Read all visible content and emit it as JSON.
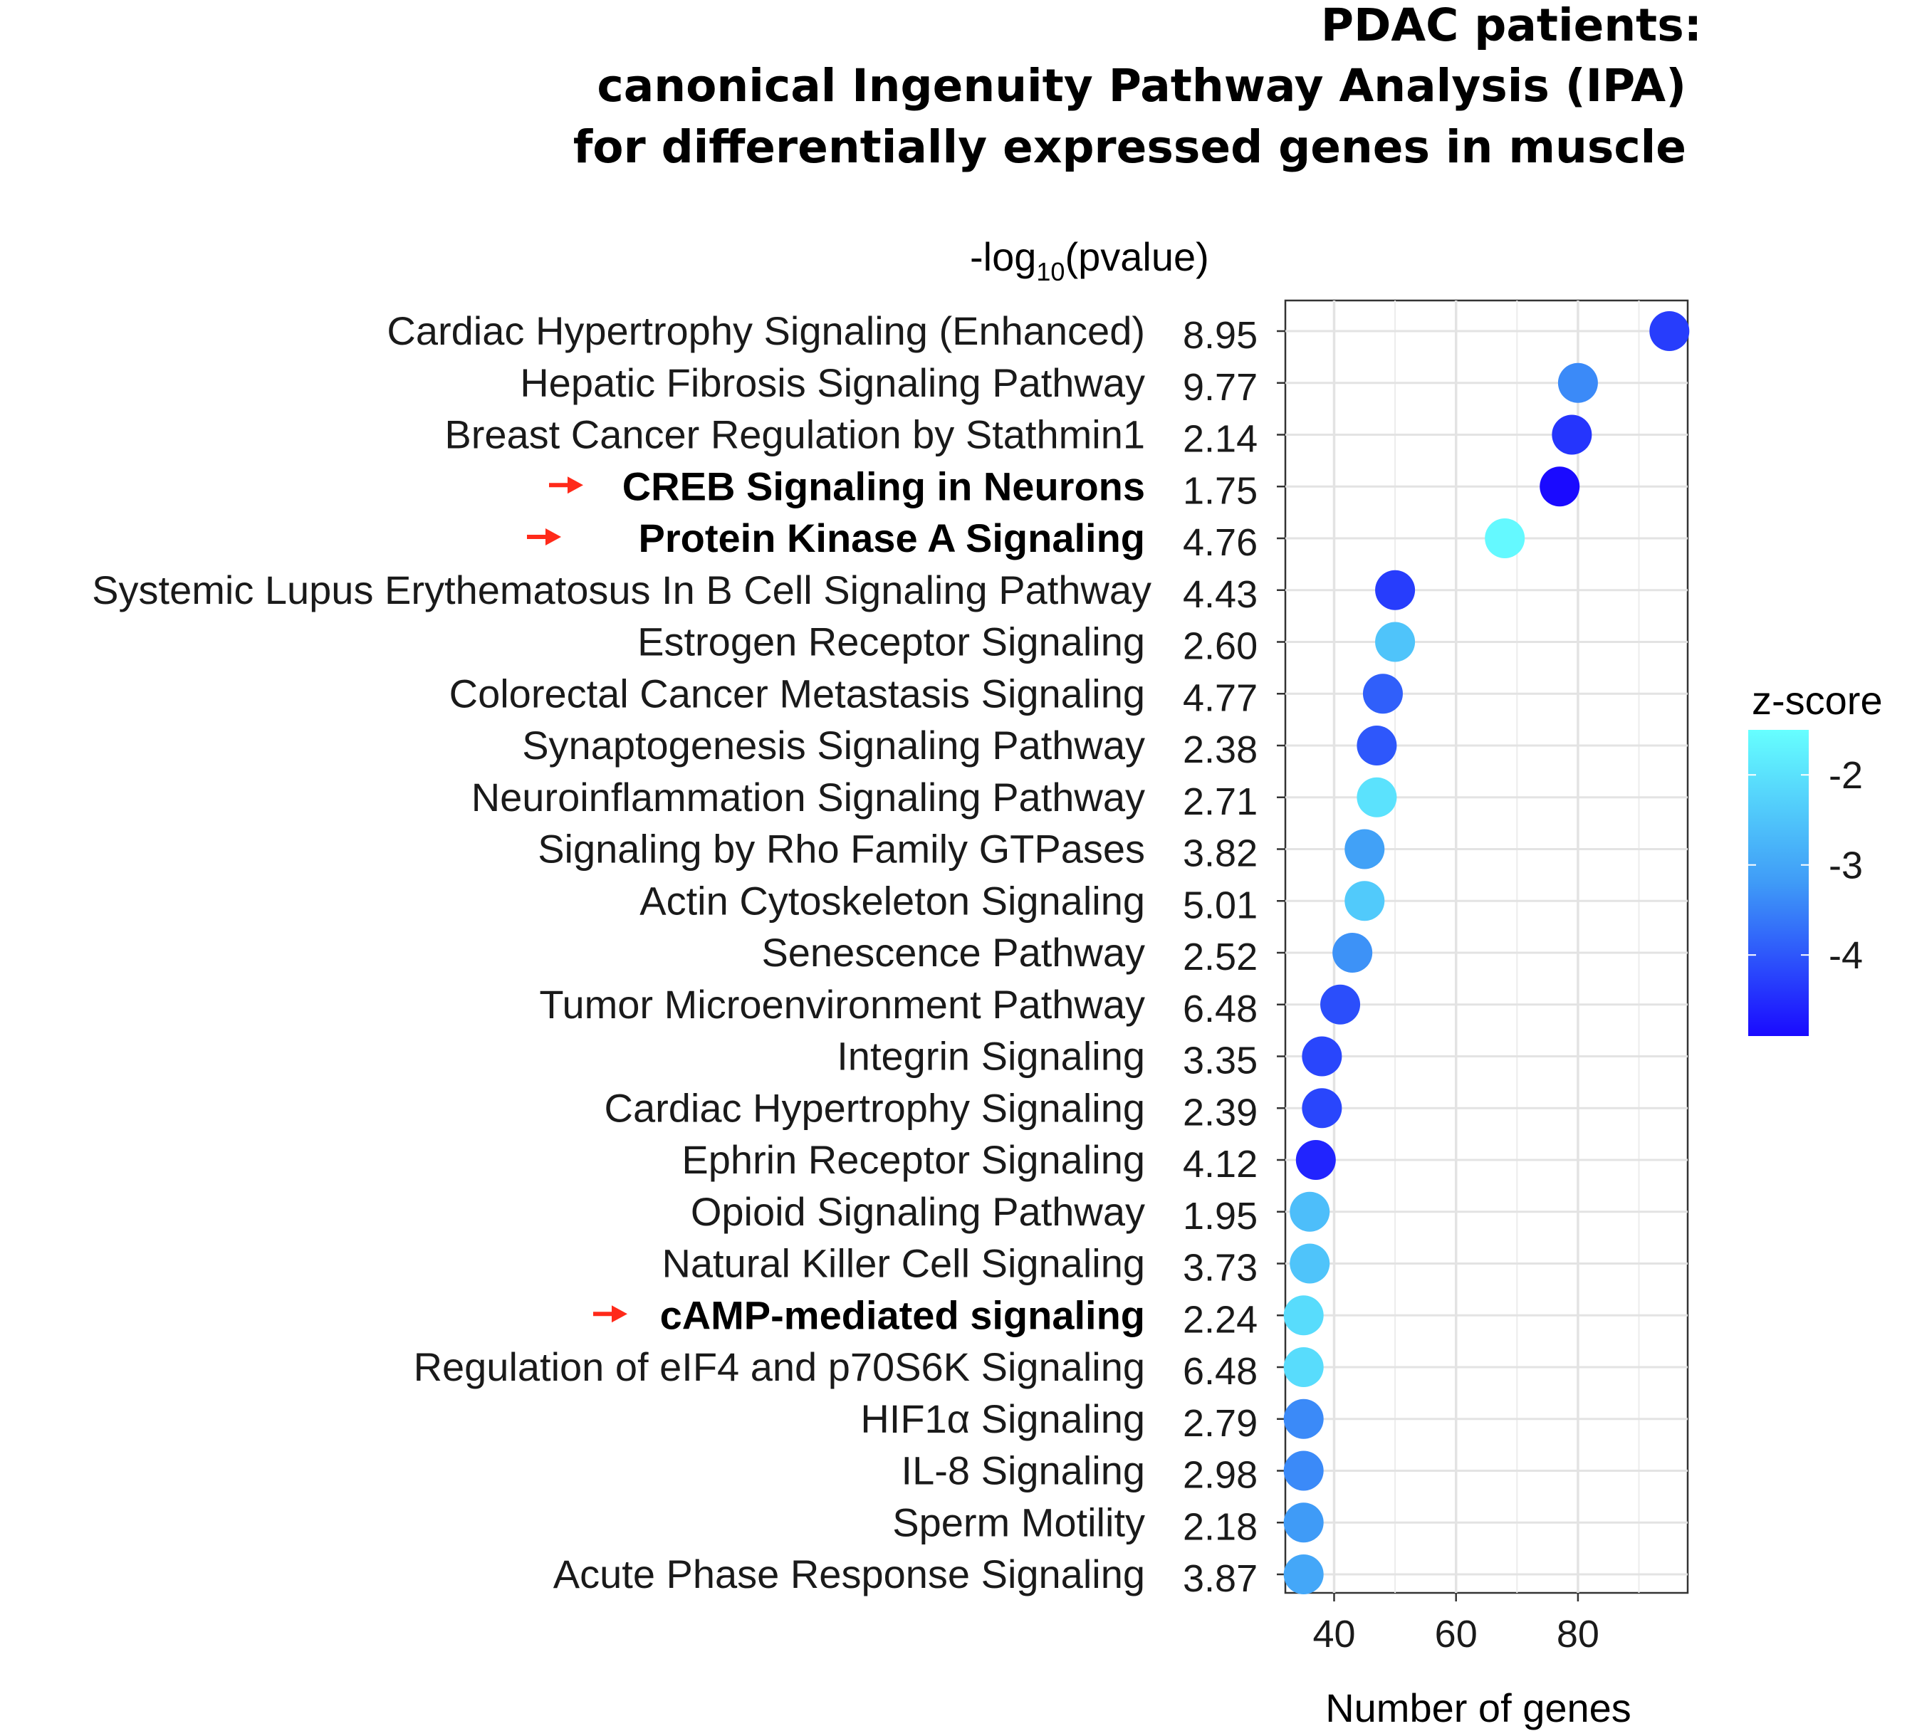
{
  "chart_data": {
    "type": "scatter",
    "title": [
      "PDAC patients:",
      "canonical Ingenuity Pathway Analysis (IPA)",
      "for differentially expressed genes in muscle"
    ],
    "pvalue_header": {
      "main": "-log",
      "sub": "10",
      "suffix": "(pvalue)"
    },
    "xlabel": "Number of genes",
    "xlim": [
      32,
      98
    ],
    "xticks": [
      40,
      60,
      80
    ],
    "legend": {
      "title": "z-score",
      "ticks": [
        -2,
        -3,
        -4
      ],
      "range": [
        -4.9,
        -1.5
      ],
      "color_low": "#1a0aff",
      "color_high": "#66ffff"
    },
    "arrow_color": "#ff2a1a",
    "series": [
      {
        "pathway": "Cardiac Hypertrophy Signaling (Enhanced)",
        "neg_log10_pvalue": "8.95",
        "genes": 95,
        "zscore": -4.3,
        "highlight": false
      },
      {
        "pathway": "Hepatic Fibrosis Signaling Pathway",
        "neg_log10_pvalue": "9.77",
        "genes": 80,
        "zscore": -3.4,
        "highlight": false
      },
      {
        "pathway": "Breast Cancer Regulation by Stathmin1",
        "neg_log10_pvalue": "2.14",
        "genes": 79,
        "zscore": -4.4,
        "highlight": false
      },
      {
        "pathway": "CREB Signaling in Neurons",
        "neg_log10_pvalue": "1.75",
        "genes": 77,
        "zscore": -4.9,
        "highlight": true
      },
      {
        "pathway": "Protein Kinase A Signaling",
        "neg_log10_pvalue": "4.76",
        "genes": 68,
        "zscore": -1.6,
        "highlight": true
      },
      {
        "pathway": "Systemic Lupus Erythematosus In B Cell Signaling Pathway",
        "neg_log10_pvalue": "4.43",
        "genes": 50,
        "zscore": -4.3,
        "highlight": false
      },
      {
        "pathway": "Estrogen Receptor Signaling",
        "neg_log10_pvalue": "2.60",
        "genes": 50,
        "zscore": -2.5,
        "highlight": false
      },
      {
        "pathway": "Colorectal Cancer Metastasis Signaling",
        "neg_log10_pvalue": "4.77",
        "genes": 48,
        "zscore": -3.9,
        "highlight": false
      },
      {
        "pathway": "Synaptogenesis Signaling Pathway",
        "neg_log10_pvalue": "2.38",
        "genes": 47,
        "zscore": -4.0,
        "highlight": false
      },
      {
        "pathway": "Neuroinflammation Signaling Pathway",
        "neg_log10_pvalue": "2.71",
        "genes": 47,
        "zscore": -2.0,
        "highlight": false
      },
      {
        "pathway": "Signaling by Rho Family GTPases",
        "neg_log10_pvalue": "3.82",
        "genes": 45,
        "zscore": -3.1,
        "highlight": false
      },
      {
        "pathway": "Actin Cytoskeleton Signaling",
        "neg_log10_pvalue": "5.01",
        "genes": 45,
        "zscore": -2.4,
        "highlight": false
      },
      {
        "pathway": "Senescence Pathway",
        "neg_log10_pvalue": "2.52",
        "genes": 43,
        "zscore": -3.3,
        "highlight": false
      },
      {
        "pathway": "Tumor Microenvironment Pathway",
        "neg_log10_pvalue": "6.48",
        "genes": 41,
        "zscore": -4.1,
        "highlight": false
      },
      {
        "pathway": "Integrin Signaling",
        "neg_log10_pvalue": "3.35",
        "genes": 38,
        "zscore": -4.2,
        "highlight": false
      },
      {
        "pathway": "Cardiac Hypertrophy Signaling",
        "neg_log10_pvalue": "2.39",
        "genes": 38,
        "zscore": -4.2,
        "highlight": false
      },
      {
        "pathway": "Ephrin Receptor Signaling",
        "neg_log10_pvalue": "4.12",
        "genes": 37,
        "zscore": -4.6,
        "highlight": false
      },
      {
        "pathway": "Opioid Signaling Pathway",
        "neg_log10_pvalue": "1.95",
        "genes": 36,
        "zscore": -2.6,
        "highlight": false
      },
      {
        "pathway": "Natural Killer Cell Signaling",
        "neg_log10_pvalue": "3.73",
        "genes": 36,
        "zscore": -2.5,
        "highlight": false
      },
      {
        "pathway": "cAMP-mediated signaling",
        "neg_log10_pvalue": "2.24",
        "genes": 35,
        "zscore": -2.1,
        "highlight": true
      },
      {
        "pathway": "Regulation of eIF4 and p70S6K Signaling",
        "neg_log10_pvalue": "6.48",
        "genes": 35,
        "zscore": -2.1,
        "highlight": false
      },
      {
        "pathway": "HIF1α Signaling",
        "neg_log10_pvalue": "2.79",
        "genes": 35,
        "zscore": -3.4,
        "highlight": false
      },
      {
        "pathway": "IL-8 Signaling",
        "neg_log10_pvalue": "2.98",
        "genes": 35,
        "zscore": -3.4,
        "highlight": false
      },
      {
        "pathway": "Sperm Motility",
        "neg_log10_pvalue": "2.18",
        "genes": 35,
        "zscore": -3.2,
        "highlight": false
      },
      {
        "pathway": "Acute Phase Response Signaling",
        "neg_log10_pvalue": "3.87",
        "genes": 35,
        "zscore": -3.0,
        "highlight": false
      }
    ]
  }
}
